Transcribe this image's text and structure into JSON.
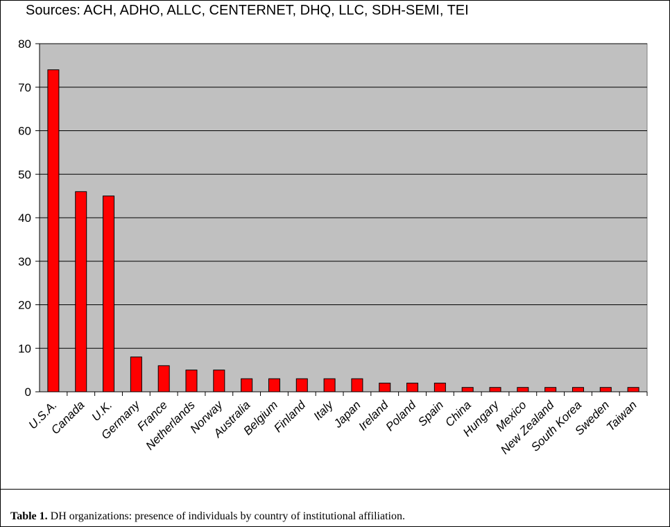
{
  "chart_data": {
    "type": "bar",
    "sources_text": "Sources: ACH, ADHO, ALLC, CENTERNET, DHQ, LLC, SDH-SEMI, TEI",
    "categories": [
      "U.S.A.",
      "Canada",
      "U.K.",
      "Germany",
      "France",
      "Netherlands",
      "Norway",
      "Australia",
      "Belgium",
      "Finland",
      "Italy",
      "Japan",
      "Ireland",
      "Poland",
      "Spain",
      "China",
      "Hungary",
      "Mexico",
      "New Zealand",
      "South Korea",
      "Sweden",
      "Taiwan"
    ],
    "values": [
      74,
      46,
      45,
      8,
      6,
      5,
      5,
      3,
      3,
      3,
      3,
      3,
      2,
      2,
      2,
      1,
      1,
      1,
      1,
      1,
      1,
      1
    ],
    "ylim": [
      0,
      80
    ],
    "yticks": [
      0,
      10,
      20,
      30,
      40,
      50,
      60,
      70,
      80
    ],
    "grid": true,
    "legend": "none",
    "bar_color": "#ff0000",
    "plot_background": "#c0c0c0"
  },
  "caption": {
    "label": "Table 1.",
    "text": " DH organizations: presence of individuals by country of institutional affiliation."
  }
}
